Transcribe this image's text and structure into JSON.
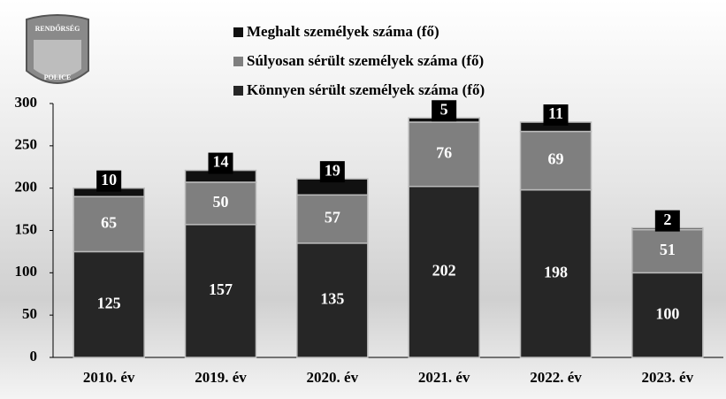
{
  "chart_data": {
    "type": "stacked-bar",
    "categories": [
      "2010. év",
      "2019. év",
      "2020. év",
      "2021. év",
      "2022. év",
      "2023. év"
    ],
    "series": [
      {
        "name": "Könnyen sérült személyek száma (fő)",
        "color": "#262626",
        "values": [
          125,
          157,
          135,
          202,
          198,
          100
        ]
      },
      {
        "name": "Súlyosan sérült személyek száma (fő)",
        "color": "#7f7f7f",
        "values": [
          65,
          50,
          57,
          76,
          69,
          51
        ]
      },
      {
        "name": "Meghalt személyek száma (fő)",
        "color": "#111111",
        "values": [
          10,
          14,
          19,
          5,
          11,
          2
        ]
      }
    ],
    "ylim": [
      0,
      300
    ],
    "yticks": [
      0,
      50,
      100,
      150,
      200,
      250,
      300
    ],
    "grid": false
  },
  "logo": {
    "top": "RENDŐRSÉG",
    "bottom": "POLICE"
  }
}
